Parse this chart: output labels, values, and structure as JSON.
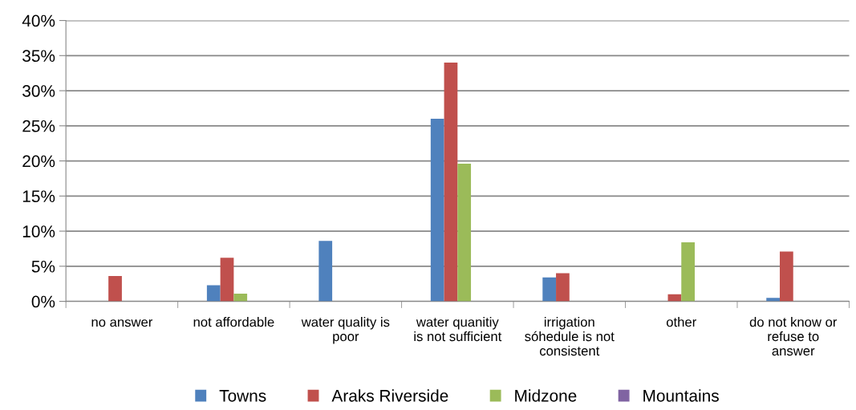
{
  "chart_data": {
    "type": "bar",
    "categories": [
      "no answer",
      "not affordable",
      "water quality is\npoor",
      "water quanitiy\nis not sufficient",
      "irrigation\nsóhedule is not\nconsistent",
      "other",
      "do not know or\nrefuse to\nanswer"
    ],
    "series": [
      {
        "name": "Towns",
        "color": "#4f81bd",
        "values": [
          0,
          2.3,
          8.6,
          26.0,
          3.4,
          0,
          0.5
        ]
      },
      {
        "name": "Araks Riverside",
        "color": "#c0504d",
        "values": [
          3.6,
          6.2,
          0,
          34.0,
          4.0,
          1.0,
          7.1
        ]
      },
      {
        "name": "Midzone",
        "color": "#9bbb59",
        "values": [
          0,
          1.1,
          0,
          19.6,
          0,
          8.4,
          0
        ]
      },
      {
        "name": "Mountains",
        "color": "#8064a2",
        "values": [
          0,
          0,
          0,
          0,
          0,
          0,
          0
        ]
      }
    ],
    "ylim": [
      0,
      40
    ],
    "yticks": [
      {
        "value": 0,
        "label": "0%"
      },
      {
        "value": 5,
        "label": "5%"
      },
      {
        "value": 10,
        "label": "10%"
      },
      {
        "value": 15,
        "label": "15%"
      },
      {
        "value": 20,
        "label": "20%"
      },
      {
        "value": 25,
        "label": "25%"
      },
      {
        "value": 30,
        "label": "30%"
      },
      {
        "value": 35,
        "label": "35%"
      },
      {
        "value": 40,
        "label": "40%"
      }
    ],
    "grid": "y",
    "legend": "bottom"
  }
}
